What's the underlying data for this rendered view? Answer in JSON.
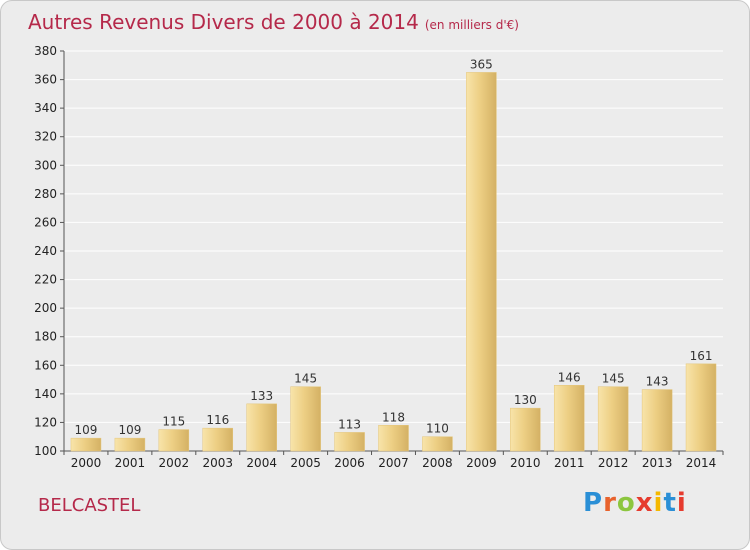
{
  "title": "Autres Revenus Divers de 2000 à 2014",
  "title_unit": "(en milliers d'€)",
  "place": "BELCASTEL",
  "logo": {
    "letters": [
      "P",
      "r",
      "o",
      "x",
      "i",
      "t",
      "i"
    ],
    "colors": [
      "#2a8fd6",
      "#e8622c",
      "#8cc63f",
      "#e63b2e",
      "#f5b800",
      "#2a8fd6",
      "#e63b2e"
    ]
  },
  "colors": {
    "accent": "#b5294a",
    "bar": "#e8c97a",
    "bar_light": "#f6dfa0",
    "bar_shadow": "#c9a85a",
    "grid": "#ffffff"
  },
  "chart_data": {
    "type": "bar",
    "categories": [
      "2000",
      "2001",
      "2002",
      "2003",
      "2004",
      "2005",
      "2006",
      "2007",
      "2008",
      "2009",
      "2010",
      "2011",
      "2012",
      "2013",
      "2014"
    ],
    "values": [
      109,
      109,
      115,
      116,
      133,
      145,
      113,
      118,
      110,
      365,
      130,
      146,
      145,
      143,
      161
    ],
    "ylim": [
      100,
      380
    ],
    "yticks": [
      100,
      120,
      140,
      160,
      180,
      200,
      220,
      240,
      260,
      280,
      300,
      320,
      340,
      360,
      380
    ],
    "xlabel": "",
    "ylabel": "",
    "grid": true,
    "data_labels": true
  }
}
